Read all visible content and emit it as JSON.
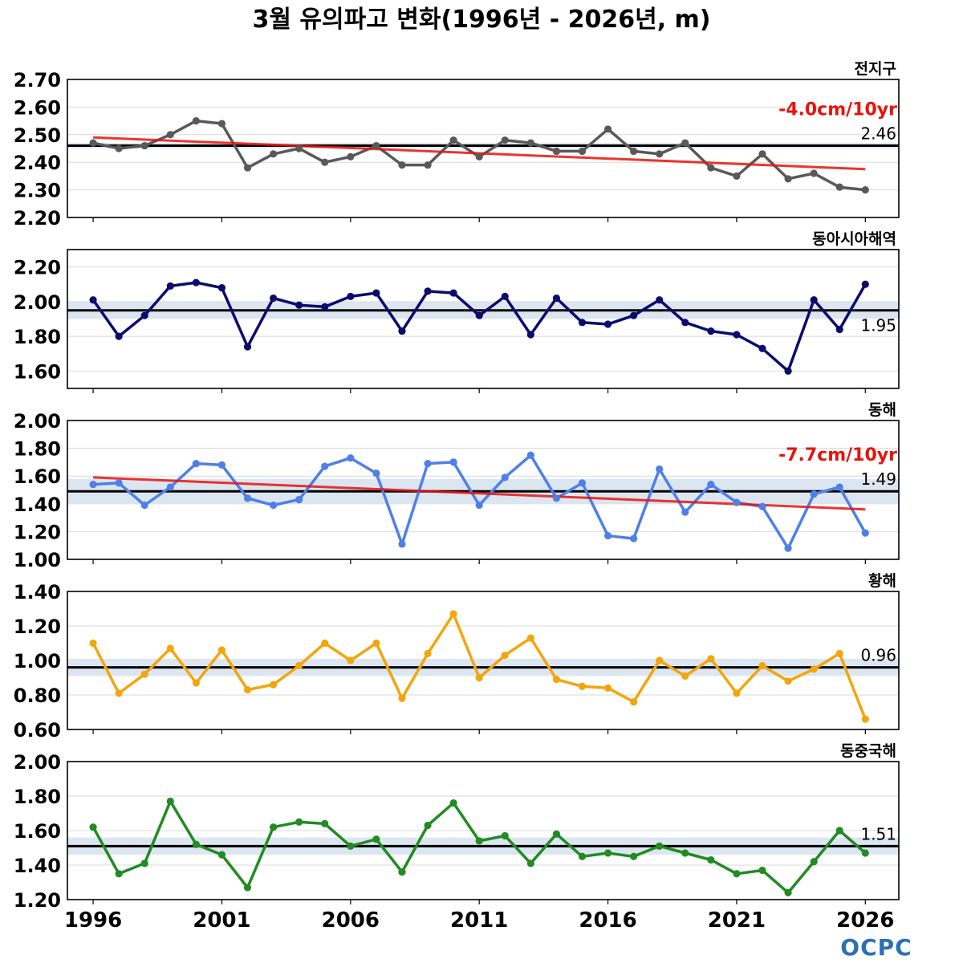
{
  "title": "3월 유의파고 변화(1996년 - 2026년, m)",
  "logo": "OCPC",
  "x_ticks": [
    "1996",
    "2001",
    "2006",
    "2011",
    "2016",
    "2021",
    "2026"
  ],
  "colors": {
    "mean_band": "#dce6f1",
    "mean_line": "#000000",
    "trend": "#e8120c",
    "grid": "#d9d9d9"
  },
  "chart_data": [
    {
      "type": "line",
      "panel": "전지구",
      "color": "#595959",
      "x_range": [
        1996,
        2026
      ],
      "ylim": [
        2.2,
        2.7
      ],
      "y_ticks": [
        "2.70",
        "2.60",
        "2.50",
        "2.40",
        "2.30",
        "2.20"
      ],
      "mean": 2.46,
      "mean_label": "2.46",
      "band": [
        2.45,
        2.47
      ],
      "trend": {
        "label": "-4.0cm/10yr",
        "start": 2.49,
        "end": 2.375
      },
      "x": [
        1996,
        1997,
        1998,
        1999,
        2000,
        2001,
        2002,
        2003,
        2004,
        2005,
        2006,
        2007,
        2008,
        2009,
        2010,
        2011,
        2012,
        2013,
        2014,
        2015,
        2016,
        2017,
        2018,
        2019,
        2020,
        2021,
        2022,
        2023,
        2024,
        2025,
        2026
      ],
      "values": [
        2.47,
        2.45,
        2.46,
        2.5,
        2.55,
        2.54,
        2.38,
        2.43,
        2.45,
        2.4,
        2.42,
        2.46,
        2.39,
        2.39,
        2.48,
        2.42,
        2.48,
        2.47,
        2.44,
        2.44,
        2.52,
        2.44,
        2.43,
        2.47,
        2.38,
        2.35,
        2.43,
        2.34,
        2.36,
        2.31,
        2.3
      ]
    },
    {
      "type": "line",
      "panel": "동아시아해역",
      "color": "#0b0b6e",
      "x_range": [
        1996,
        2026
      ],
      "ylim": [
        1.5,
        2.3
      ],
      "y_ticks": [
        "2.20",
        "2.00",
        "1.80",
        "1.60"
      ],
      "mean": 1.95,
      "mean_label": "1.95",
      "band": [
        1.9,
        2.0
      ],
      "trend": null,
      "x": [
        1996,
        1997,
        1998,
        1999,
        2000,
        2001,
        2002,
        2003,
        2004,
        2005,
        2006,
        2007,
        2008,
        2009,
        2010,
        2011,
        2012,
        2013,
        2014,
        2015,
        2016,
        2017,
        2018,
        2019,
        2020,
        2021,
        2022,
        2023,
        2024,
        2025,
        2026
      ],
      "values": [
        2.01,
        1.8,
        1.92,
        2.09,
        2.11,
        2.08,
        1.74,
        2.02,
        1.98,
        1.97,
        2.03,
        2.05,
        1.83,
        2.06,
        2.05,
        1.92,
        2.03,
        1.81,
        2.02,
        1.88,
        1.87,
        1.92,
        2.01,
        1.88,
        1.83,
        1.81,
        1.73,
        1.6,
        2.01,
        1.84,
        2.1
      ]
    },
    {
      "type": "line",
      "panel": "동해",
      "color": "#4f7fe8",
      "x_range": [
        1996,
        2026
      ],
      "ylim": [
        1.0,
        2.0
      ],
      "y_ticks": [
        "2.00",
        "1.80",
        "1.60",
        "1.40",
        "1.20",
        "1.00"
      ],
      "mean": 1.49,
      "mean_label": "1.49",
      "band": [
        1.4,
        1.58
      ],
      "trend": {
        "label": "-7.7cm/10yr",
        "start": 1.59,
        "end": 1.36
      },
      "x": [
        1996,
        1997,
        1998,
        1999,
        2000,
        2001,
        2002,
        2003,
        2004,
        2005,
        2006,
        2007,
        2008,
        2009,
        2010,
        2011,
        2012,
        2013,
        2014,
        2015,
        2016,
        2017,
        2018,
        2019,
        2020,
        2021,
        2022,
        2023,
        2024,
        2025,
        2026
      ],
      "values": [
        1.54,
        1.55,
        1.39,
        1.52,
        1.69,
        1.68,
        1.44,
        1.39,
        1.43,
        1.67,
        1.73,
        1.62,
        1.11,
        1.69,
        1.7,
        1.39,
        1.59,
        1.75,
        1.44,
        1.55,
        1.17,
        1.15,
        1.65,
        1.34,
        1.54,
        1.41,
        1.38,
        1.08,
        1.47,
        1.52,
        1.19
      ]
    },
    {
      "type": "line",
      "panel": "황해",
      "color": "#f2a60c",
      "x_range": [
        1996,
        2026
      ],
      "ylim": [
        0.6,
        1.4
      ],
      "y_ticks": [
        "1.40",
        "1.20",
        "1.00",
        "0.80",
        "0.60"
      ],
      "mean": 0.96,
      "mean_label": "0.96",
      "band": [
        0.91,
        1.01
      ],
      "trend": null,
      "x": [
        1996,
        1997,
        1998,
        1999,
        2000,
        2001,
        2002,
        2003,
        2004,
        2005,
        2006,
        2007,
        2008,
        2009,
        2010,
        2011,
        2012,
        2013,
        2014,
        2015,
        2016,
        2017,
        2018,
        2019,
        2020,
        2021,
        2022,
        2023,
        2024,
        2025,
        2026
      ],
      "values": [
        1.1,
        0.81,
        0.92,
        1.07,
        0.87,
        1.06,
        0.83,
        0.86,
        0.97,
        1.1,
        1.0,
        1.1,
        0.78,
        1.04,
        1.27,
        0.9,
        1.03,
        1.13,
        0.89,
        0.85,
        0.84,
        0.76,
        1.0,
        0.91,
        1.01,
        0.81,
        0.97,
        0.88,
        0.95,
        1.04,
        0.66
      ]
    },
    {
      "type": "line",
      "panel": "동중국해",
      "color": "#228b22",
      "x_range": [
        1996,
        2026
      ],
      "ylim": [
        1.2,
        2.0
      ],
      "y_ticks": [
        "2.00",
        "1.80",
        "1.60",
        "1.40",
        "1.20"
      ],
      "mean": 1.51,
      "mean_label": "1.51",
      "band": [
        1.46,
        1.56
      ],
      "trend": null,
      "x": [
        1996,
        1997,
        1998,
        1999,
        2000,
        2001,
        2002,
        2003,
        2004,
        2005,
        2006,
        2007,
        2008,
        2009,
        2010,
        2011,
        2012,
        2013,
        2014,
        2015,
        2016,
        2017,
        2018,
        2019,
        2020,
        2021,
        2022,
        2023,
        2024,
        2025,
        2026
      ],
      "values": [
        1.62,
        1.35,
        1.41,
        1.77,
        1.52,
        1.46,
        1.27,
        1.62,
        1.65,
        1.64,
        1.51,
        1.55,
        1.36,
        1.63,
        1.76,
        1.54,
        1.57,
        1.41,
        1.58,
        1.45,
        1.47,
        1.45,
        1.51,
        1.47,
        1.43,
        1.35,
        1.37,
        1.24,
        1.42,
        1.6,
        1.47
      ]
    }
  ]
}
